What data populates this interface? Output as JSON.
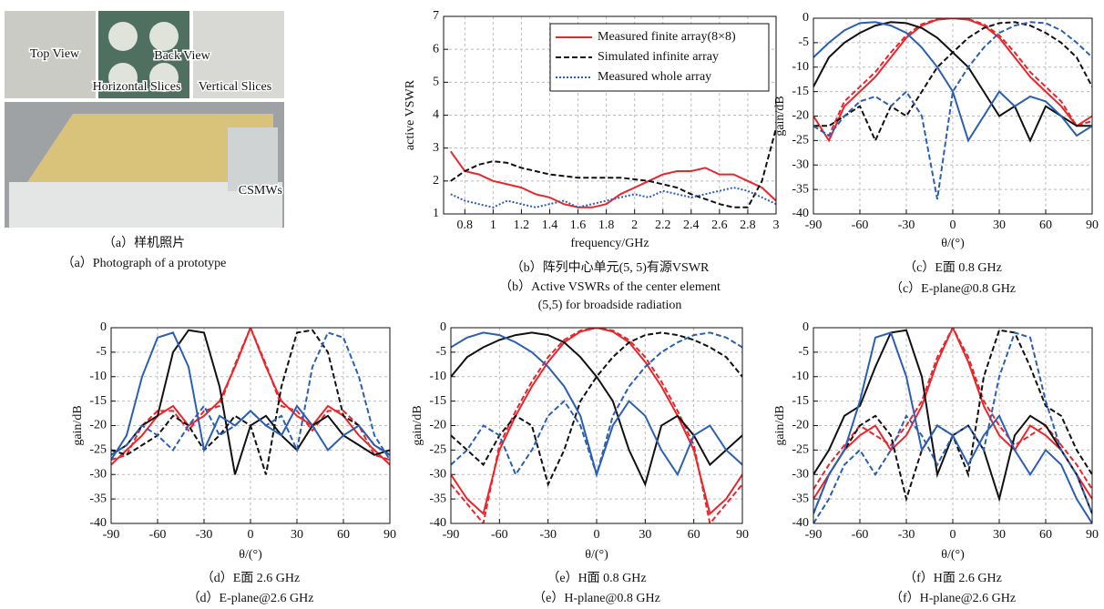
{
  "photo": {
    "labels": [
      "Top View",
      "Back View",
      "Horizontal Slices",
      "Vertical Slices",
      "CSMWs"
    ],
    "captions": [
      "（a）样机照片",
      "（a）Photograph of a prototype"
    ]
  },
  "chart_data": [
    {
      "type": "line",
      "captions": [
        "（b）阵列中心单元(5, 5)有源VSWR",
        "（b）Active VSWRs of the center element",
        "(5,5) for broadside radiation"
      ],
      "xlabel": "frequency/GHz",
      "ylabel": "active VSWR",
      "legend": "upper right",
      "grid": true,
      "x": [
        0.7,
        0.8,
        0.9,
        1.0,
        1.1,
        1.2,
        1.3,
        1.4,
        1.5,
        1.6,
        1.7,
        1.8,
        1.9,
        2.0,
        2.1,
        2.2,
        2.3,
        2.4,
        2.5,
        2.6,
        2.7,
        2.8,
        2.9,
        3.0
      ],
      "xlim": [
        0.65,
        3.0
      ],
      "xticks": [
        0.8,
        1.0,
        1.2,
        1.4,
        1.6,
        1.8,
        2.0,
        2.2,
        2.4,
        2.6,
        2.8,
        3.0
      ],
      "ylim": [
        1,
        7
      ],
      "yticks": [
        1,
        2,
        3,
        4,
        5,
        6,
        7
      ],
      "series": [
        {
          "name": "Measured finite array(8×8)",
          "color": "#e8262b",
          "style": "solid",
          "values": [
            2.9,
            2.3,
            2.2,
            2.0,
            1.9,
            1.8,
            1.6,
            1.5,
            1.3,
            1.2,
            1.2,
            1.3,
            1.6,
            1.8,
            2.0,
            2.2,
            2.3,
            2.3,
            2.4,
            2.2,
            2.2,
            2.0,
            1.8,
            1.4
          ]
        },
        {
          "name": "Simulated infinite array",
          "color": "#111111",
          "style": "dashed",
          "values": [
            2.0,
            2.3,
            2.5,
            2.6,
            2.55,
            2.4,
            2.3,
            2.2,
            2.15,
            2.1,
            2.1,
            2.1,
            2.1,
            2.05,
            2.0,
            1.9,
            1.8,
            1.6,
            1.45,
            1.3,
            1.2,
            1.2,
            2.0,
            3.6
          ]
        },
        {
          "name": "Measured whole array",
          "color": "#2b5fb4",
          "style": "dotted",
          "values": [
            1.6,
            1.4,
            1.3,
            1.2,
            1.4,
            1.3,
            1.2,
            1.3,
            1.4,
            1.2,
            1.3,
            1.4,
            1.5,
            1.6,
            1.5,
            1.7,
            1.6,
            1.5,
            1.6,
            1.7,
            1.8,
            1.7,
            1.5,
            1.3
          ]
        }
      ]
    },
    {
      "type": "line",
      "captions": [
        "（c）E面 0.8 GHz",
        "（c）E-plane@0.8 GHz"
      ],
      "xlabel": "θ/(°)",
      "ylabel": "gain/dB",
      "grid": true,
      "x": [
        -90,
        -80,
        -70,
        -60,
        -50,
        -40,
        -30,
        -20,
        -10,
        0,
        10,
        20,
        30,
        40,
        50,
        60,
        70,
        80,
        90
      ],
      "xlim": [
        -90,
        90
      ],
      "xticks": [
        -90,
        -60,
        -30,
        0,
        30,
        60,
        90
      ],
      "ylim": [
        -40,
        0
      ],
      "yticks": [
        -40,
        -35,
        -30,
        -25,
        -20,
        -15,
        -10,
        -5,
        0
      ],
      "series": [
        {
          "color": "#e8262b",
          "style": "solid",
          "values": [
            -20,
            -25,
            -18,
            -15,
            -12,
            -8,
            -4,
            -1.5,
            -0.3,
            0,
            -0.3,
            -1.5,
            -4,
            -8,
            -12,
            -15,
            -18,
            -22,
            -20
          ]
        },
        {
          "color": "#e8262b",
          "style": "dashed",
          "values": [
            -22,
            -24,
            -17,
            -14,
            -11,
            -7,
            -3.5,
            -1.2,
            -0.2,
            0,
            -0.2,
            -1.2,
            -3.5,
            -7,
            -11,
            -14,
            -17,
            -22,
            -21
          ]
        },
        {
          "color": "#111111",
          "style": "solid",
          "values": [
            -14,
            -8,
            -5,
            -3,
            -1.5,
            -0.8,
            -1,
            -2,
            -4,
            -7,
            -10,
            -15,
            -20,
            -18,
            -25,
            -18,
            -20,
            -22,
            -22
          ]
        },
        {
          "color": "#111111",
          "style": "dashed",
          "values": [
            -22,
            -22,
            -20,
            -18,
            -25,
            -18,
            -20,
            -15,
            -10,
            -7,
            -4,
            -2,
            -1,
            -0.8,
            -1.5,
            -3,
            -5,
            -8,
            -14
          ]
        },
        {
          "color": "#2b5fb4",
          "style": "solid",
          "values": [
            -8,
            -5,
            -2.5,
            -1,
            -0.8,
            -1.5,
            -3,
            -6,
            -10,
            -15,
            -25,
            -20,
            -15,
            -18,
            -16,
            -17,
            -20,
            -24,
            -22
          ]
        },
        {
          "color": "#2b5fb4",
          "style": "dashed",
          "values": [
            -22,
            -24,
            -20,
            -17,
            -16,
            -18,
            -15,
            -20,
            -37,
            -15,
            -10,
            -6,
            -3,
            -1.5,
            -0.8,
            -1,
            -2.5,
            -5,
            -8
          ]
        }
      ]
    },
    {
      "type": "line",
      "captions": [
        "（d）E面 2.6 GHz",
        "（d）E-plane@2.6 GHz"
      ],
      "xlabel": "θ/(°)",
      "ylabel": "gain/dB",
      "grid": true,
      "x": [
        -90,
        -80,
        -70,
        -60,
        -50,
        -40,
        -30,
        -20,
        -10,
        0,
        10,
        20,
        30,
        40,
        50,
        60,
        70,
        80,
        90
      ],
      "xlim": [
        -90,
        90
      ],
      "xticks": [
        -90,
        -60,
        -30,
        0,
        30,
        60,
        90
      ],
      "ylim": [
        -40,
        0
      ],
      "yticks": [
        -40,
        -35,
        -30,
        -25,
        -20,
        -15,
        -10,
        -5,
        0
      ],
      "series": [
        {
          "color": "#e8262b",
          "style": "solid",
          "values": [
            -28,
            -25,
            -22,
            -18,
            -16,
            -20,
            -18,
            -15,
            -8,
            0,
            -8,
            -15,
            -18,
            -20,
            -16,
            -18,
            -22,
            -25,
            -28
          ]
        },
        {
          "color": "#e8262b",
          "style": "dashed",
          "values": [
            -27,
            -26,
            -20,
            -17,
            -17,
            -21,
            -17,
            -16,
            -7.5,
            0,
            -7.5,
            -16,
            -17,
            -21,
            -17,
            -17,
            -20,
            -26,
            -27
          ]
        },
        {
          "color": "#111111",
          "style": "solid",
          "values": [
            -26,
            -24,
            -20,
            -18,
            -5,
            -0.5,
            -1,
            -12,
            -30,
            -20,
            -18,
            -22,
            -25,
            -20,
            -18,
            -22,
            -24,
            -26,
            -25
          ]
        },
        {
          "color": "#111111",
          "style": "dashed",
          "values": [
            -25,
            -26,
            -24,
            -22,
            -18,
            -20,
            -25,
            -22,
            -18,
            -20,
            -30,
            -12,
            -1,
            -0.5,
            -5,
            -18,
            -20,
            -24,
            -26
          ]
        },
        {
          "color": "#2b5fb4",
          "style": "solid",
          "values": [
            -27,
            -22,
            -10,
            -2,
            -1,
            -8,
            -25,
            -18,
            -20,
            -17,
            -20,
            -22,
            -16,
            -20,
            -25,
            -22,
            -20,
            -24,
            -26
          ]
        },
        {
          "color": "#2b5fb4",
          "style": "dashed",
          "values": [
            -26,
            -24,
            -20,
            -22,
            -25,
            -20,
            -16,
            -22,
            -20,
            -17,
            -20,
            -18,
            -25,
            -8,
            -1,
            -2,
            -10,
            -22,
            -27
          ]
        }
      ]
    },
    {
      "type": "line",
      "captions": [
        "（e）H面 0.8 GHz",
        "（e）H-plane@0.8 GHz"
      ],
      "xlabel": "θ/(°)",
      "ylabel": "gain/dB",
      "grid": true,
      "x": [
        -90,
        -80,
        -70,
        -60,
        -50,
        -40,
        -30,
        -20,
        -10,
        0,
        10,
        20,
        30,
        40,
        50,
        60,
        70,
        80,
        90
      ],
      "xlim": [
        -90,
        90
      ],
      "xticks": [
        -90,
        -60,
        -30,
        0,
        30,
        60,
        90
      ],
      "ylim": [
        -40,
        0
      ],
      "yticks": [
        -40,
        -35,
        -30,
        -25,
        -20,
        -15,
        -10,
        -5,
        0
      ],
      "series": [
        {
          "color": "#e8262b",
          "style": "solid",
          "values": [
            -30,
            -35,
            -38,
            -25,
            -18,
            -12,
            -7,
            -3,
            -0.8,
            0,
            -0.8,
            -3,
            -7,
            -12,
            -18,
            -25,
            -38,
            -35,
            -30
          ]
        },
        {
          "color": "#e8262b",
          "style": "dashed",
          "values": [
            -32,
            -36,
            -40,
            -24,
            -17,
            -11,
            -6,
            -2.5,
            -0.6,
            0,
            -0.6,
            -2.5,
            -6,
            -11,
            -17,
            -24,
            -40,
            -36,
            -32
          ]
        },
        {
          "color": "#111111",
          "style": "solid",
          "values": [
            -10,
            -6,
            -4,
            -2.5,
            -1.5,
            -1,
            -1.5,
            -3,
            -6,
            -10,
            -15,
            -25,
            -32,
            -20,
            -18,
            -22,
            -28,
            -25,
            -22
          ]
        },
        {
          "color": "#111111",
          "style": "dashed",
          "values": [
            -22,
            -25,
            -28,
            -22,
            -18,
            -20,
            -32,
            -25,
            -15,
            -10,
            -6,
            -3,
            -1.5,
            -1,
            -1.5,
            -2.5,
            -4,
            -6,
            -10
          ]
        },
        {
          "color": "#2b5fb4",
          "style": "solid",
          "values": [
            -4,
            -2,
            -1,
            -1.5,
            -3,
            -5,
            -8,
            -12,
            -18,
            -30,
            -20,
            -15,
            -18,
            -25,
            -30,
            -22,
            -20,
            -25,
            -28
          ]
        },
        {
          "color": "#2b5fb4",
          "style": "dashed",
          "values": [
            -28,
            -25,
            -20,
            -22,
            -30,
            -25,
            -18,
            -15,
            -20,
            -30,
            -18,
            -12,
            -8,
            -5,
            -3,
            -1.5,
            -1,
            -2,
            -4
          ]
        }
      ]
    },
    {
      "type": "line",
      "captions": [
        "（f）H面 2.6 GHz",
        "（f）H-plane@2.6 GHz"
      ],
      "xlabel": "θ/(°)",
      "ylabel": "gain/dB",
      "grid": true,
      "x": [
        -90,
        -80,
        -70,
        -60,
        -50,
        -40,
        -30,
        -20,
        -10,
        0,
        10,
        20,
        30,
        40,
        50,
        60,
        70,
        80,
        90
      ],
      "xlim": [
        -90,
        90
      ],
      "xticks": [
        -90,
        -60,
        -30,
        0,
        30,
        60,
        90
      ],
      "ylim": [
        -40,
        0
      ],
      "yticks": [
        -40,
        -35,
        -30,
        -25,
        -20,
        -15,
        -10,
        -5,
        0
      ],
      "series": [
        {
          "color": "#e8262b",
          "style": "solid",
          "values": [
            -35,
            -30,
            -25,
            -22,
            -20,
            -25,
            -22,
            -16,
            -7,
            0,
            -7,
            -16,
            -22,
            -25,
            -20,
            -22,
            -25,
            -30,
            -35
          ]
        },
        {
          "color": "#e8262b",
          "style": "dashed",
          "values": [
            -33,
            -28,
            -24,
            -20,
            -22,
            -24,
            -20,
            -15,
            -6,
            0,
            -6,
            -15,
            -20,
            -24,
            -22,
            -20,
            -24,
            -28,
            -33
          ]
        },
        {
          "color": "#111111",
          "style": "solid",
          "values": [
            -30,
            -25,
            -18,
            -16,
            -8,
            -1,
            -0.5,
            -10,
            -30,
            -22,
            -20,
            -25,
            -35,
            -22,
            -18,
            -20,
            -25,
            -30,
            -38
          ]
        },
        {
          "color": "#111111",
          "style": "dashed",
          "values": [
            -38,
            -30,
            -25,
            -20,
            -18,
            -22,
            -35,
            -25,
            -20,
            -22,
            -30,
            -10,
            -0.5,
            -1,
            -8,
            -16,
            -18,
            -25,
            -30
          ]
        },
        {
          "color": "#2b5fb4",
          "style": "solid",
          "values": [
            -38,
            -30,
            -25,
            -15,
            -2,
            -1,
            -10,
            -25,
            -20,
            -22,
            -28,
            -22,
            -18,
            -25,
            -30,
            -25,
            -28,
            -35,
            -40
          ]
        },
        {
          "color": "#2b5fb4",
          "style": "dashed",
          "values": [
            -40,
            -35,
            -28,
            -25,
            -30,
            -25,
            -18,
            -22,
            -28,
            -22,
            -20,
            -25,
            -10,
            -1,
            -2,
            -15,
            -25,
            -30,
            -38
          ]
        }
      ]
    }
  ]
}
